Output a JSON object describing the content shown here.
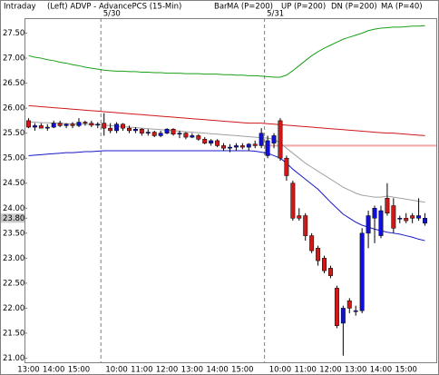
{
  "chart_data": {
    "type": "candlestick",
    "title": "Intraday",
    "subtitle": "(Left)  ADVP - AdvancePCS (15-Min)",
    "style_label": "Bar",
    "categories": [
      "13:00",
      null,
      null,
      null,
      "14:00",
      null,
      null,
      null,
      "15:00",
      null,
      null,
      null,
      null,
      null,
      "10:00",
      null,
      null,
      null,
      "11:00",
      null,
      null,
      null,
      "12:00",
      null,
      null,
      null,
      "13:00",
      null,
      null,
      null,
      "14:00",
      null,
      null,
      null,
      "15:00",
      null,
      null,
      null,
      null,
      null,
      "10:00",
      null,
      null,
      null,
      "11:00",
      null,
      null,
      null,
      "12:00",
      null,
      null,
      null,
      "13:00",
      null,
      null,
      null,
      "14:00",
      null,
      null,
      null,
      "15:00",
      null,
      null,
      null
    ],
    "open": [
      25.75,
      25.62,
      25.65,
      25.6,
      25.62,
      25.7,
      25.65,
      25.68,
      25.65,
      25.72,
      25.7,
      25.66,
      25.7,
      25.6,
      25.55,
      25.68,
      25.6,
      25.55,
      25.58,
      25.5,
      25.52,
      25.45,
      25.5,
      25.58,
      25.48,
      25.5,
      25.42,
      25.45,
      25.38,
      25.3,
      25.35,
      25.25,
      25.2,
      25.22,
      25.25,
      25.22,
      25.28,
      25.25,
      25.05,
      25.3,
      25.75,
      25.0,
      24.5,
      23.85,
      23.85,
      23.45,
      23.2,
      23.0,
      22.8,
      22.4,
      21.7,
      22.15,
      21.95,
      21.95,
      23.5,
      23.8,
      23.45,
      24.2,
      24.05,
      23.8,
      23.8,
      23.85,
      23.8,
      23.7
    ],
    "high": [
      25.8,
      25.7,
      25.7,
      25.68,
      25.75,
      25.75,
      25.7,
      25.72,
      25.8,
      25.75,
      25.75,
      25.72,
      25.9,
      25.7,
      25.72,
      25.7,
      25.65,
      25.62,
      25.6,
      25.58,
      25.55,
      25.55,
      25.6,
      25.6,
      25.55,
      25.52,
      25.5,
      25.48,
      25.42,
      25.38,
      25.38,
      25.3,
      25.28,
      25.3,
      25.3,
      25.3,
      25.35,
      25.6,
      25.45,
      25.5,
      25.8,
      25.05,
      24.55,
      24.0,
      23.9,
      23.5,
      23.25,
      23.05,
      22.85,
      22.45,
      22.05,
      22.2,
      22.05,
      23.6,
      23.95,
      24.05,
      24.05,
      24.5,
      24.2,
      23.85,
      23.9,
      23.9,
      24.2,
      23.9
    ],
    "low": [
      25.6,
      25.55,
      25.6,
      25.55,
      25.6,
      25.62,
      25.6,
      25.6,
      25.62,
      25.65,
      25.62,
      25.6,
      25.45,
      25.5,
      25.5,
      25.55,
      25.5,
      25.5,
      25.45,
      25.45,
      25.42,
      25.42,
      25.48,
      25.45,
      25.4,
      25.38,
      25.4,
      25.35,
      25.28,
      25.25,
      25.22,
      25.15,
      25.12,
      25.15,
      25.18,
      25.15,
      25.2,
      25.2,
      25.0,
      25.2,
      24.95,
      24.55,
      23.75,
      23.75,
      23.35,
      23.1,
      22.85,
      22.7,
      22.6,
      21.6,
      21.05,
      21.9,
      21.85,
      21.9,
      23.2,
      23.3,
      23.4,
      23.85,
      23.5,
      23.7,
      23.7,
      23.7,
      23.75,
      23.65
    ],
    "close": [
      25.62,
      25.65,
      25.6,
      25.62,
      25.7,
      25.65,
      25.68,
      25.65,
      25.72,
      25.7,
      25.66,
      25.68,
      25.6,
      25.55,
      25.68,
      25.6,
      25.55,
      25.58,
      25.5,
      25.52,
      25.45,
      25.5,
      25.58,
      25.48,
      25.5,
      25.42,
      25.45,
      25.38,
      25.3,
      25.35,
      25.25,
      25.2,
      25.22,
      25.25,
      25.22,
      25.28,
      25.25,
      25.5,
      25.35,
      25.45,
      25.0,
      24.65,
      23.8,
      23.8,
      23.45,
      23.15,
      22.95,
      22.75,
      22.65,
      21.65,
      22.0,
      22.0,
      21.95,
      23.5,
      23.85,
      24.0,
      23.95,
      23.9,
      23.6,
      23.8,
      23.75,
      23.8,
      23.85,
      23.8
    ],
    "up_color": "#1010d8",
    "down_color": "#d01818",
    "series": [
      {
        "name": "MA (P=200)",
        "color": "#d01818",
        "values": [
          26.05,
          26.04,
          26.03,
          26.02,
          26.01,
          26.0,
          25.99,
          25.98,
          25.97,
          25.96,
          25.95,
          25.94,
          25.93,
          25.92,
          25.91,
          25.9,
          25.89,
          25.88,
          25.87,
          25.86,
          25.85,
          25.84,
          25.83,
          25.82,
          25.81,
          25.8,
          25.79,
          25.78,
          25.77,
          25.76,
          25.75,
          25.74,
          25.73,
          25.72,
          25.71,
          25.7,
          25.7,
          25.7,
          25.69,
          25.68,
          25.67,
          25.66,
          25.65,
          25.64,
          25.63,
          25.62,
          25.61,
          25.6,
          25.59,
          25.58,
          25.57,
          25.56,
          25.55,
          25.54,
          25.53,
          25.52,
          25.51,
          25.5,
          25.5,
          25.49,
          25.48,
          25.47,
          25.46,
          25.45
        ]
      },
      {
        "name": "UP (P=200)",
        "color": "#18a018",
        "values": [
          27.05,
          27.02,
          27.0,
          26.97,
          26.95,
          26.92,
          26.9,
          26.87,
          26.85,
          26.82,
          26.8,
          26.78,
          26.76,
          26.75,
          26.74,
          26.74,
          26.73,
          26.73,
          26.72,
          26.72,
          26.71,
          26.71,
          26.7,
          26.7,
          26.7,
          26.69,
          26.69,
          26.69,
          26.68,
          26.68,
          26.68,
          26.67,
          26.67,
          26.66,
          26.66,
          26.65,
          26.65,
          26.64,
          26.63,
          26.62,
          26.62,
          26.66,
          26.75,
          26.85,
          26.95,
          27.05,
          27.13,
          27.2,
          27.26,
          27.32,
          27.38,
          27.42,
          27.46,
          27.5,
          27.55,
          27.58,
          27.6,
          27.61,
          27.62,
          27.62,
          27.63,
          27.64,
          27.64,
          27.65
        ]
      },
      {
        "name": "DN (P=200)",
        "color": "#1818c8",
        "values": [
          25.05,
          25.06,
          25.07,
          25.08,
          25.09,
          25.1,
          25.11,
          25.11,
          25.12,
          25.13,
          25.13,
          25.14,
          25.15,
          25.15,
          25.15,
          25.15,
          25.15,
          25.15,
          25.15,
          25.15,
          25.15,
          25.15,
          25.15,
          25.15,
          25.15,
          25.15,
          25.15,
          25.15,
          25.15,
          25.15,
          25.15,
          25.15,
          25.15,
          25.15,
          25.15,
          25.15,
          25.14,
          25.12,
          25.1,
          25.05,
          25.0,
          24.9,
          24.78,
          24.68,
          24.58,
          24.48,
          24.38,
          24.25,
          24.12,
          24.0,
          23.88,
          23.8,
          23.72,
          23.66,
          23.62,
          23.58,
          23.55,
          23.52,
          23.5,
          23.48,
          23.45,
          23.42,
          23.38,
          23.35
        ]
      },
      {
        "name": "MA (P=40)",
        "color": "#a0a0a0",
        "values": [
          25.72,
          25.72,
          25.71,
          25.71,
          25.7,
          25.7,
          25.69,
          25.69,
          25.68,
          25.68,
          25.67,
          25.67,
          25.66,
          25.65,
          25.64,
          25.63,
          25.62,
          25.61,
          25.6,
          25.59,
          25.58,
          25.57,
          25.56,
          25.55,
          25.54,
          25.53,
          25.52,
          25.51,
          25.5,
          25.49,
          25.48,
          25.47,
          25.46,
          25.45,
          25.44,
          25.43,
          25.42,
          25.41,
          25.4,
          25.38,
          25.3,
          25.2,
          25.1,
          25.0,
          24.9,
          24.82,
          24.74,
          24.66,
          24.58,
          24.5,
          24.42,
          24.36,
          24.3,
          24.26,
          24.24,
          24.22,
          24.22,
          24.24,
          24.22,
          24.2,
          24.18,
          24.16,
          24.14,
          24.12
        ]
      }
    ],
    "day_breaks": [
      {
        "index": 12,
        "label": "5/30"
      },
      {
        "index": 38,
        "label": "5/31"
      }
    ],
    "reference_line": {
      "value": 25.25,
      "color": "#f2a8a8"
    },
    "ylim": [
      20.9,
      27.8
    ],
    "yticks": [
      {
        "value": 21,
        "label": "21.00"
      },
      {
        "value": 21.5,
        "label": "21.50"
      },
      {
        "value": 22,
        "label": "22.00"
      },
      {
        "value": 22.5,
        "label": "22.50"
      },
      {
        "value": 23,
        "label": "23.00"
      },
      {
        "value": 23.5,
        "label": "23.50"
      },
      {
        "value": 23.8,
        "label": "23.80"
      },
      {
        "value": 24,
        "label": "24.00"
      },
      {
        "value": 24.5,
        "label": "24.50"
      },
      {
        "value": 25,
        "label": "25.00"
      },
      {
        "value": 25.5,
        "label": "25.50"
      },
      {
        "value": 26,
        "label": "26.00"
      },
      {
        "value": 26.5,
        "label": "26.50"
      },
      {
        "value": 27,
        "label": "27.00"
      },
      {
        "value": 27.5,
        "label": "27.50"
      }
    ]
  }
}
